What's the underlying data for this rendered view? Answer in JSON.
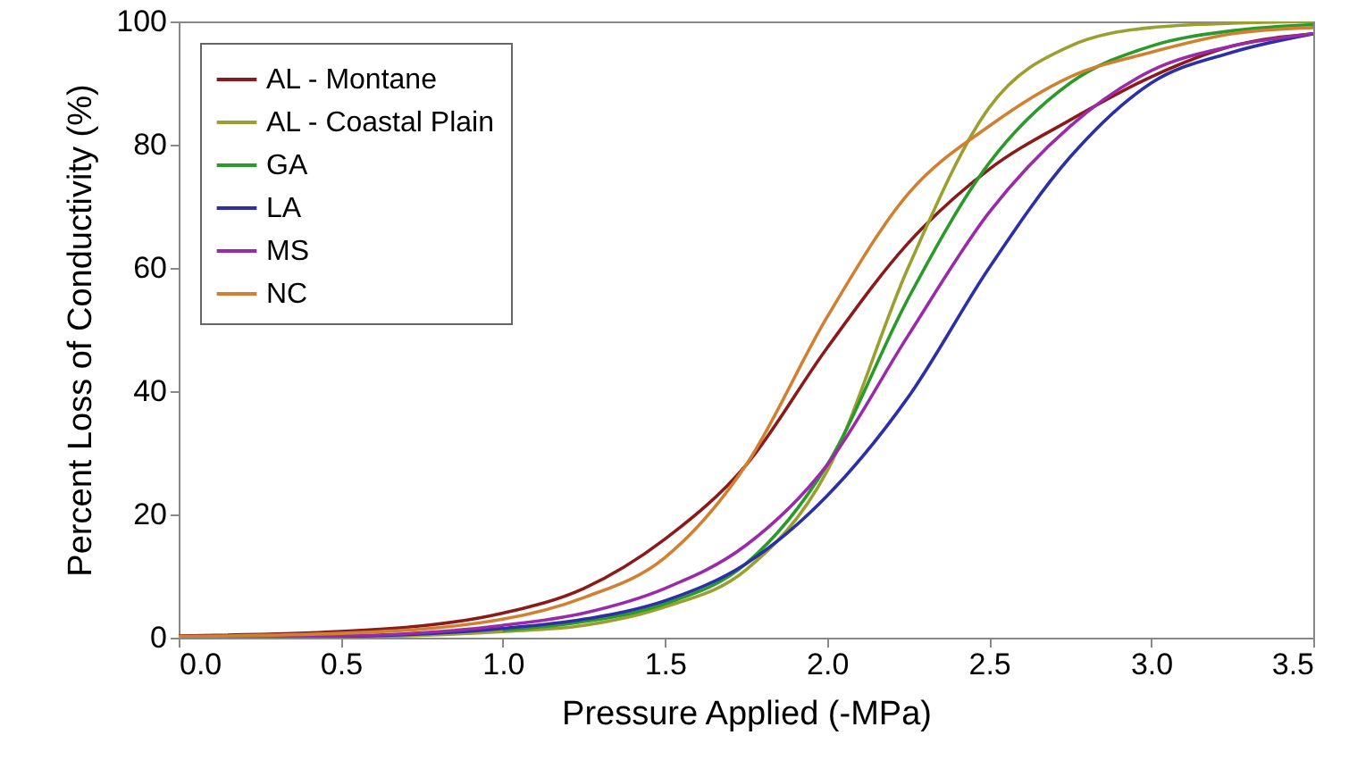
{
  "chart_data": {
    "type": "line",
    "xlabel": "Pressure Applied (-MPa)",
    "ylabel": "Percent Loss of Conductivity (%)",
    "x": [
      0,
      0.5,
      1.0,
      1.25,
      1.5,
      1.75,
      2.0,
      2.25,
      2.5,
      2.75,
      3.0,
      3.25,
      3.5
    ],
    "series": [
      {
        "name": "AL - Montane",
        "color": "#8b1a1a",
        "values": [
          0.3,
          1,
          4,
          8,
          16,
          28,
          47,
          64,
          76,
          84,
          91,
          96,
          98
        ]
      },
      {
        "name": "AL - Coastal Plain",
        "color": "#9aa030",
        "values": [
          0,
          0.1,
          1,
          2,
          5,
          11,
          27,
          60,
          86,
          96,
          99,
          99.7,
          100
        ]
      },
      {
        "name": "GA",
        "color": "#2a9a2a",
        "values": [
          null,
          null,
          1.2,
          2.6,
          5.5,
          12,
          28,
          55,
          77,
          90,
          96,
          98.5,
          99.5
        ]
      },
      {
        "name": "LA",
        "color": "#2b2fa8",
        "values": [
          0,
          0.2,
          1.5,
          3,
          6,
          12,
          23,
          39,
          60,
          78,
          90,
          95,
          98
        ]
      },
      {
        "name": "MS",
        "color": "#9a2aaa",
        "values": [
          0.1,
          0.3,
          2,
          4,
          8,
          15,
          28,
          49,
          69,
          83,
          92,
          96,
          98
        ]
      },
      {
        "name": "NC",
        "color": "#d08030",
        "values": [
          0.2,
          0.7,
          3,
          6.5,
          13,
          28,
          52,
          72,
          83,
          91,
          95,
          98,
          99
        ]
      }
    ],
    "xlim": [
      0,
      3.5
    ],
    "xticks": [
      {
        "value": 0,
        "label": "0.0"
      },
      {
        "value": 0.5,
        "label": "0.5"
      },
      {
        "value": 1,
        "label": "1.0"
      },
      {
        "value": 1.5,
        "label": "1.5"
      },
      {
        "value": 2,
        "label": "2.0"
      },
      {
        "value": 2.5,
        "label": "2.5"
      },
      {
        "value": 3,
        "label": "3.0"
      },
      {
        "value": 3.5,
        "label": "3.5"
      }
    ],
    "ylim": [
      0,
      100
    ],
    "yticks": [
      0,
      20,
      40,
      60,
      80,
      100
    ],
    "legend": "top left",
    "line_style": "solid",
    "marker": "none"
  }
}
